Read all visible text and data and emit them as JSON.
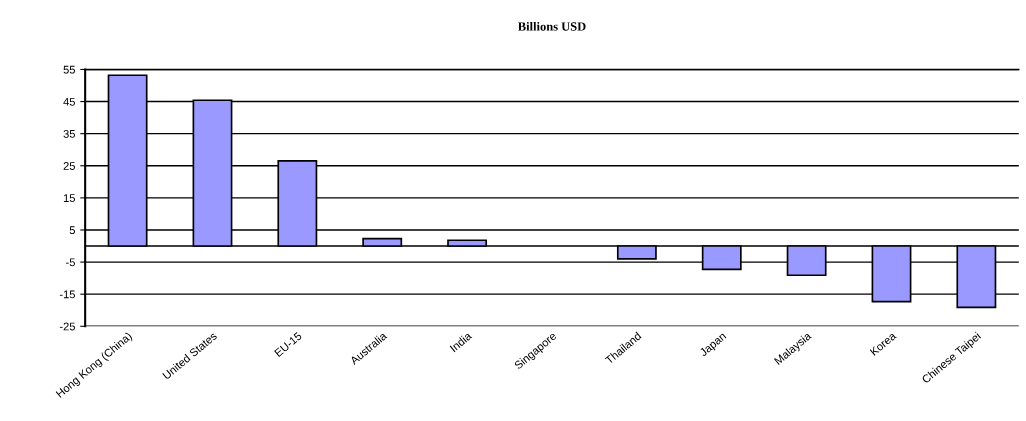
{
  "chart_data": {
    "type": "bar",
    "title": "Billions USD",
    "categories": [
      "Hong Kong (China)",
      "United States",
      "EU-15",
      "Australia",
      "India",
      "Singapore",
      "Thailand",
      "Japan",
      "Malaysia",
      "Korea",
      "Chinese Taipei"
    ],
    "values": [
      53.2,
      45.4,
      26.5,
      2.3,
      1.8,
      null,
      -4.0,
      -7.3,
      -9.1,
      -17.3,
      -19.1
    ],
    "color": "#9999ff",
    "ylim": [
      -25,
      55
    ],
    "yticks": [
      -25,
      -15,
      -5,
      5,
      15,
      25,
      35,
      45,
      55
    ],
    "grid": "y"
  }
}
